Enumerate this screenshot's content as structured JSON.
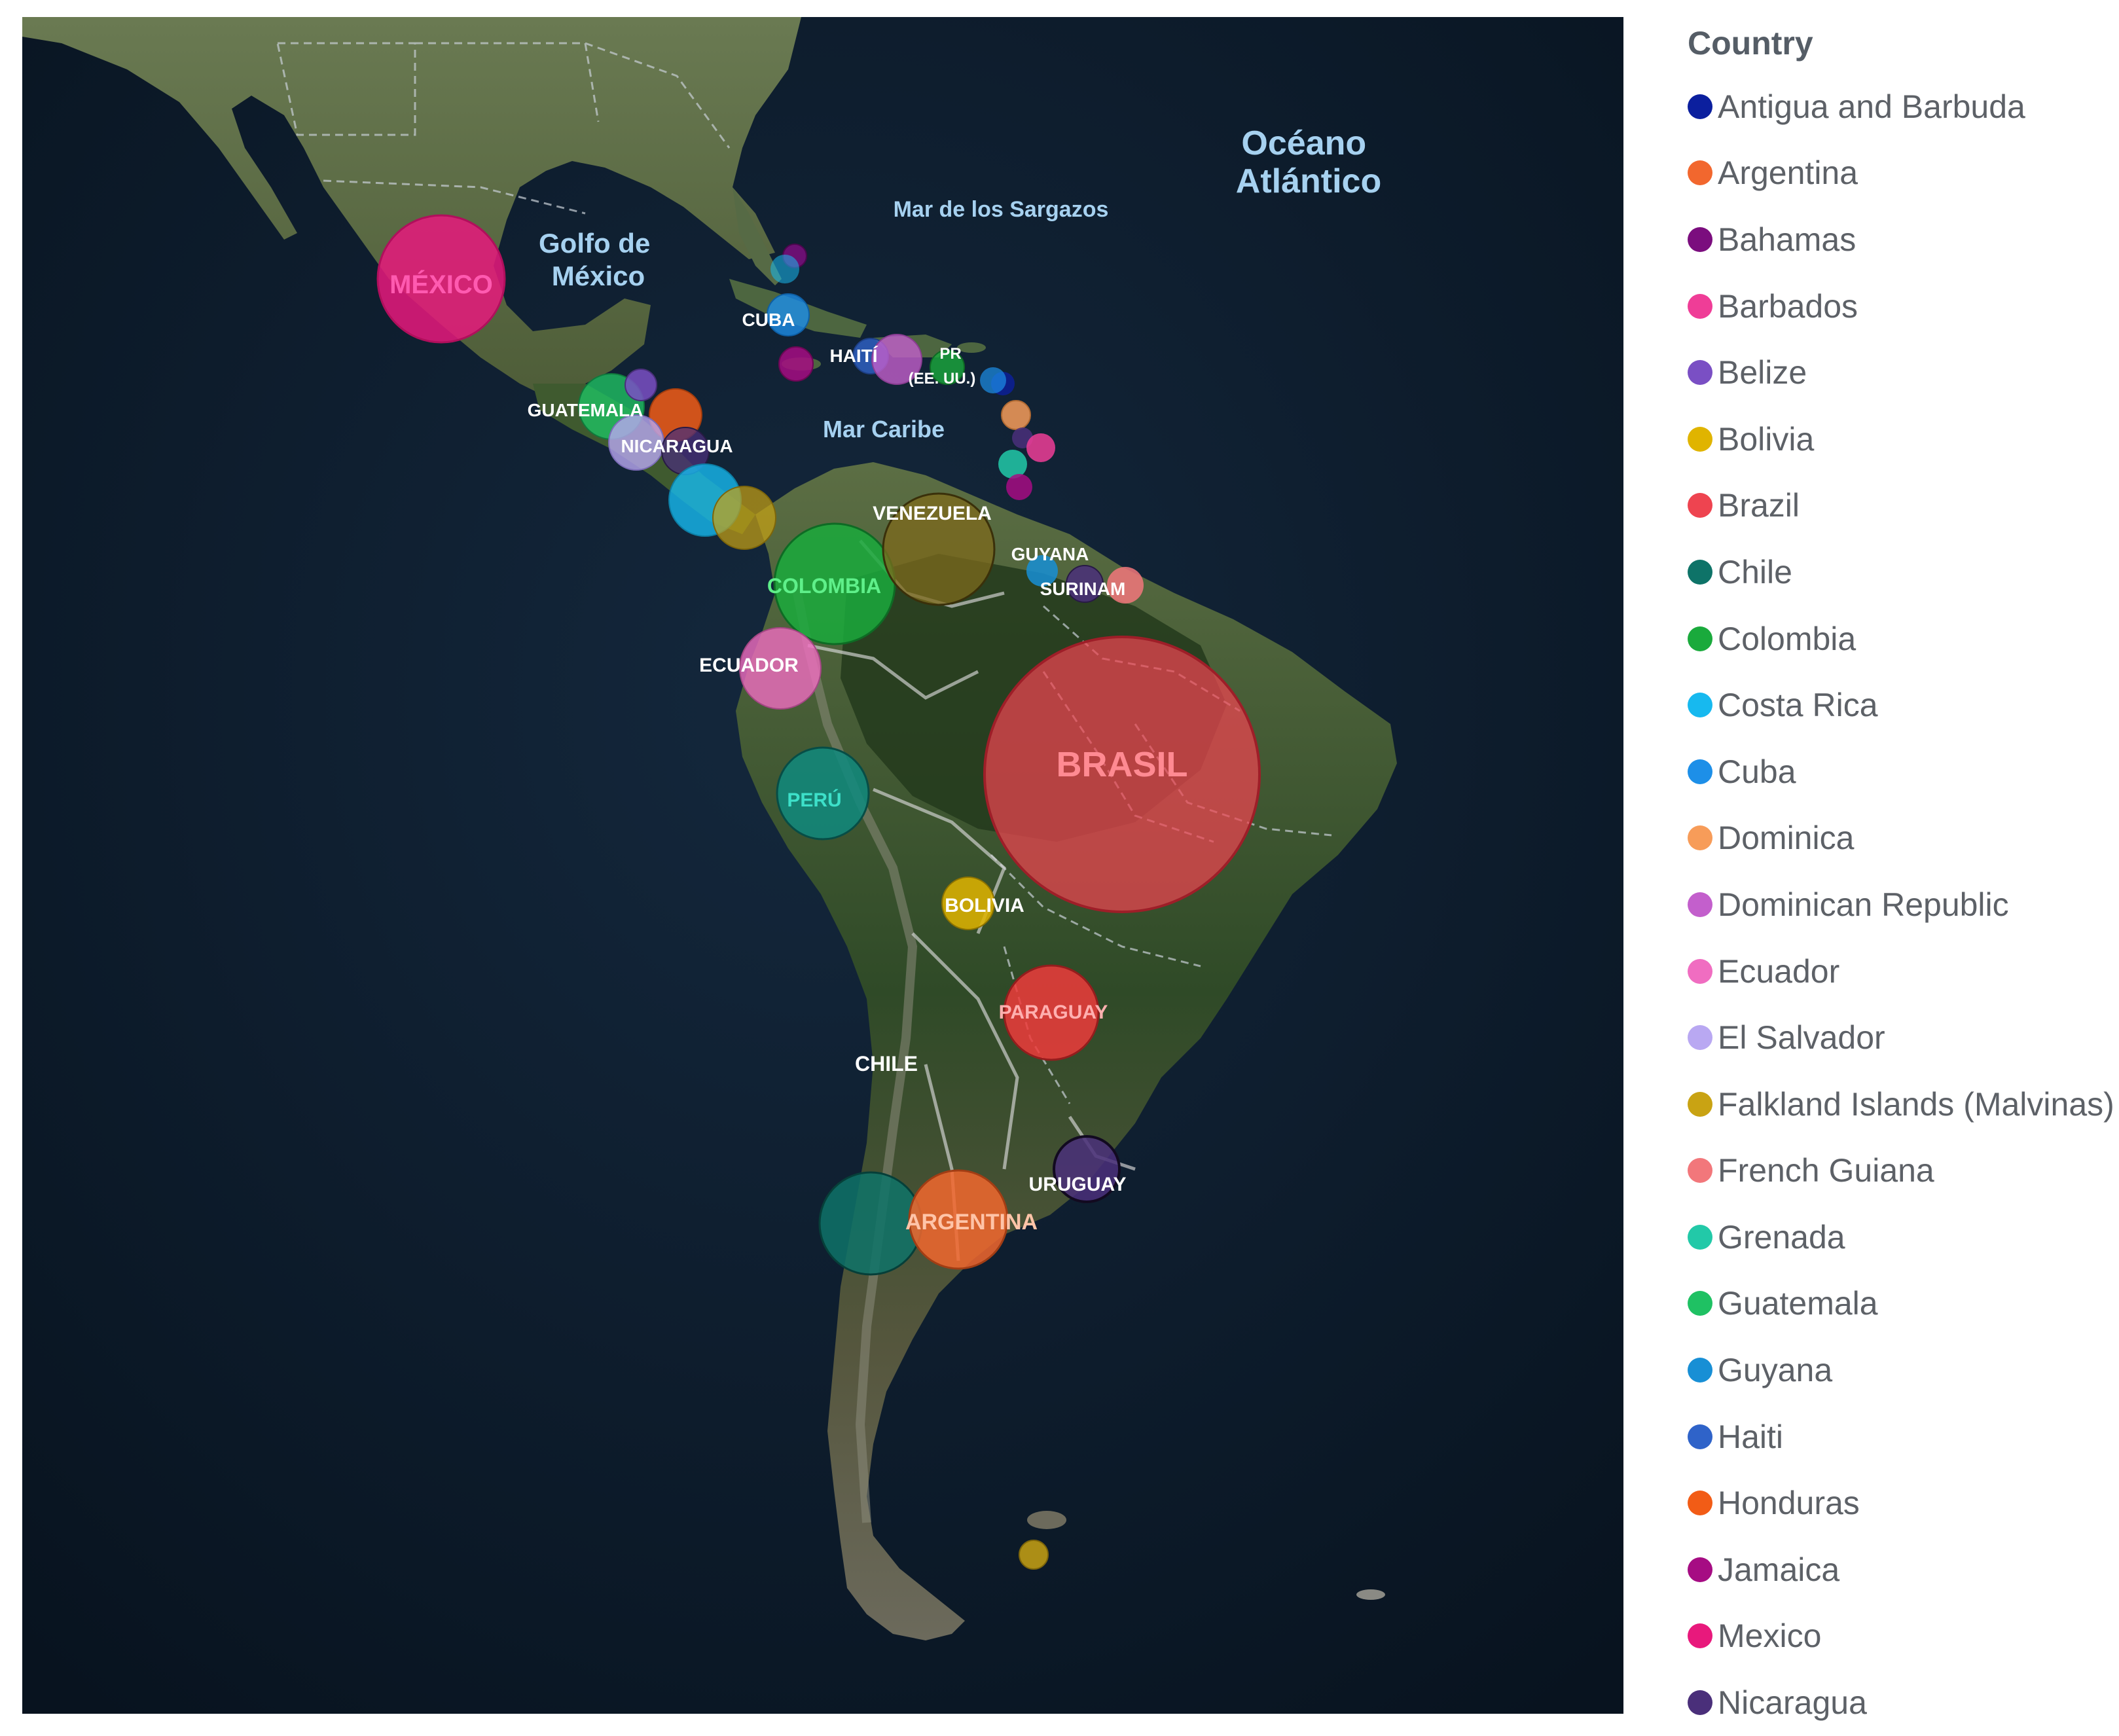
{
  "map": {
    "ocean_labels": [
      {
        "id": "oceano",
        "lines": [
          "Océano",
          "Atlántico"
        ]
      },
      {
        "id": "sargazos",
        "lines": [
          "Mar de los Sargazos"
        ]
      },
      {
        "id": "golfo",
        "lines": [
          "Golfo de",
          "México"
        ]
      },
      {
        "id": "caribe",
        "lines": [
          "Mar Caribe"
        ]
      }
    ],
    "country_labels": [
      "MÉXICO",
      "CUBA",
      "HAITÍ",
      "PR",
      "(EE. UU.)",
      "GUATEMALA",
      "NICARAGUA",
      "VENEZUELA",
      "GUYANA",
      "SURINAM",
      "COLOMBIA",
      "ECUADOR",
      "BRASIL",
      "PERÚ",
      "BOLIVIA",
      "PARAGUAY",
      "CHILE",
      "URUGUAY",
      "ARGENTINA"
    ]
  },
  "legend": {
    "title": "Country",
    "items": [
      {
        "label": "Antigua and Barbuda",
        "color": "#0b1f9e"
      },
      {
        "label": "Argentina",
        "color": "#f2672e"
      },
      {
        "label": "Bahamas",
        "color": "#7b0d7e"
      },
      {
        "label": "Barbados",
        "color": "#ef3d97"
      },
      {
        "label": "Belize",
        "color": "#7a4fc4"
      },
      {
        "label": "Bolivia",
        "color": "#e0b400"
      },
      {
        "label": "Brazil",
        "color": "#ee4450"
      },
      {
        "label": "Chile",
        "color": "#0e7368"
      },
      {
        "label": "Colombia",
        "color": "#1aaa3c"
      },
      {
        "label": "Costa Rica",
        "color": "#17b9ef"
      },
      {
        "label": "Cuba",
        "color": "#1d8fe8"
      },
      {
        "label": "Dominica",
        "color": "#f79c59"
      },
      {
        "label": "Dominican Republic",
        "color": "#c35fcc"
      },
      {
        "label": "Ecuador",
        "color": "#f06dc1"
      },
      {
        "label": "El Salvador",
        "color": "#b9a8f2"
      },
      {
        "label": "Falkland Islands (Malvinas)",
        "color": "#c9a313"
      },
      {
        "label": "French Guiana",
        "color": "#f2777b"
      },
      {
        "label": "Grenada",
        "color": "#22c9a8"
      },
      {
        "label": "Guatemala",
        "color": "#1fc163"
      },
      {
        "label": "Guyana",
        "color": "#188fd5"
      },
      {
        "label": "Haiti",
        "color": "#2f63c9"
      },
      {
        "label": "Honduras",
        "color": "#f25c16"
      },
      {
        "label": "Jamaica",
        "color": "#a60c83"
      },
      {
        "label": "Mexico",
        "color": "#e8197c"
      },
      {
        "label": "Nicaragua",
        "color": "#4a2f7a"
      }
    ]
  }
}
